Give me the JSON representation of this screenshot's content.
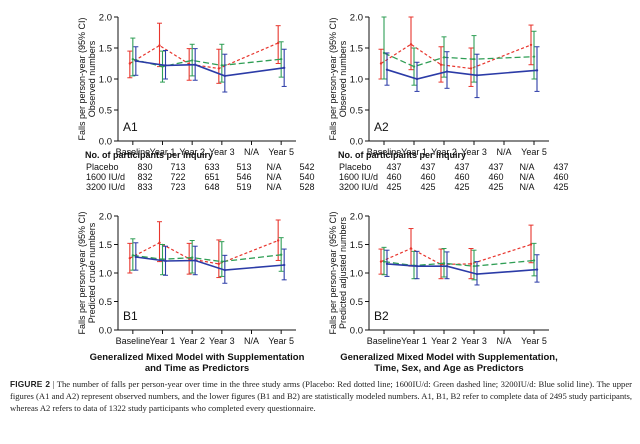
{
  "figure": {
    "caption_label": "FIGURE 2",
    "caption_sep": "|",
    "caption_text": "The number of falls per person-year over time in the three study arms (Placebo: Red dotted line; 1600IU/d: Green dashed line; 3200IU/d: Blue solid line). The upper figures (A1 and A2) represent observed numbers, and the lower figures (B1 and B2) are statistically modeled numbers. A1, B1, B2 refer to complete data of 2495 study participants, whereas A2 refers to data of 1322 study participants who completed every questionnaire."
  },
  "colors": {
    "placebo": "#e8352d",
    "iu1600": "#2f9e55",
    "iu3200": "#2b3ba7",
    "axis": "#111111"
  },
  "chart_data": [
    {
      "id": "A1",
      "type": "line",
      "panel_label": "A1",
      "ylabel_lines": [
        "Falls per person-year (95% CI)",
        "Observed numbers"
      ],
      "categories": [
        "Baseline",
        "Year 1",
        "Year 2",
        "Year 3",
        "N/A",
        "Year 5"
      ],
      "ylim": [
        0,
        2.0
      ],
      "yticks": [
        "0.0",
        "0.5",
        "1.0",
        "1.5",
        "2.0"
      ],
      "series": [
        {
          "key": "placebo",
          "style": "dotted",
          "values": [
            1.25,
            1.54,
            1.24,
            1.17,
            null,
            1.58
          ],
          "lower": [
            1.02,
            1.2,
            0.98,
            0.93,
            null,
            1.25
          ],
          "upper": [
            1.45,
            1.9,
            1.49,
            1.48,
            null,
            1.86
          ]
        },
        {
          "key": "iu1600",
          "style": "dashed",
          "values": [
            1.32,
            1.2,
            1.3,
            1.22,
            null,
            1.32
          ],
          "lower": [
            1.05,
            0.95,
            1.05,
            0.95,
            null,
            1.03
          ],
          "upper": [
            1.66,
            1.45,
            1.56,
            1.56,
            null,
            1.6
          ]
        },
        {
          "key": "iu3200",
          "style": "solid",
          "values": [
            1.29,
            1.22,
            1.23,
            1.05,
            null,
            1.18
          ],
          "lower": [
            1.06,
            1.0,
            0.98,
            0.79,
            null,
            0.88
          ],
          "upper": [
            1.52,
            1.46,
            1.49,
            1.4,
            null,
            1.48
          ]
        }
      ]
    },
    {
      "id": "A2",
      "type": "line",
      "panel_label": "A2",
      "ylabel_lines": [
        "Falls per person-year (95% CI)",
        "Observed numbers"
      ],
      "categories": [
        "Baseline",
        "Year 1",
        "Year 2",
        "Year 3",
        "N/A",
        "Year 5"
      ],
      "ylim": [
        0,
        2.0
      ],
      "yticks": [
        "0.0",
        "0.5",
        "1.0",
        "1.5",
        "2.0"
      ],
      "series": [
        {
          "key": "placebo",
          "style": "dotted",
          "values": [
            1.25,
            1.56,
            1.23,
            1.17,
            null,
            1.55
          ],
          "lower": [
            1.0,
            1.15,
            0.95,
            0.88,
            null,
            1.23
          ],
          "upper": [
            1.48,
            2.0,
            1.52,
            1.5,
            null,
            1.87
          ]
        },
        {
          "key": "iu1600",
          "style": "dashed",
          "values": [
            1.42,
            1.2,
            1.35,
            1.32,
            null,
            1.36
          ],
          "lower": [
            1.0,
            0.9,
            1.03,
            0.95,
            null,
            1.0
          ],
          "upper": [
            2.0,
            1.5,
            1.68,
            1.7,
            null,
            1.77
          ]
        },
        {
          "key": "iu3200",
          "style": "solid",
          "values": [
            1.15,
            1.0,
            1.12,
            1.06,
            null,
            1.14
          ],
          "lower": [
            0.9,
            0.8,
            0.85,
            0.7,
            null,
            0.8
          ],
          "upper": [
            1.42,
            1.27,
            1.44,
            1.4,
            null,
            1.52
          ]
        }
      ]
    },
    {
      "id": "B1",
      "type": "line",
      "panel_label": "B1",
      "ylabel_lines": [
        "Falls per person-year (95% CI)",
        "Predicted crude numbers"
      ],
      "categories": [
        "Baseline",
        "Year 1",
        "Year 2",
        "Year 3",
        "N/A",
        "Year 5"
      ],
      "xlabel_lines": [
        "Generalized Mixed Model with Supplementation",
        "and Time as Predictors"
      ],
      "ylim": [
        0,
        2.0
      ],
      "yticks": [
        "0.0",
        "0.5",
        "1.0",
        "1.5",
        "2.0"
      ],
      "series": [
        {
          "key": "placebo",
          "style": "dotted",
          "values": [
            1.26,
            1.53,
            1.25,
            1.16,
            null,
            1.57
          ],
          "lower": [
            1.0,
            1.2,
            0.98,
            0.92,
            null,
            1.22
          ],
          "upper": [
            1.52,
            1.9,
            1.52,
            1.58,
            null,
            1.93
          ]
        },
        {
          "key": "iu1600",
          "style": "dashed",
          "values": [
            1.31,
            1.24,
            1.27,
            1.2,
            null,
            1.32
          ],
          "lower": [
            1.05,
            0.97,
            1.0,
            0.94,
            null,
            1.03
          ],
          "upper": [
            1.6,
            1.5,
            1.57,
            1.55,
            null,
            1.62
          ]
        },
        {
          "key": "iu3200",
          "style": "solid",
          "values": [
            1.28,
            1.21,
            1.22,
            1.05,
            null,
            1.14
          ],
          "lower": [
            1.05,
            0.96,
            0.97,
            0.82,
            null,
            0.88
          ],
          "upper": [
            1.53,
            1.47,
            1.47,
            1.31,
            null,
            1.42
          ]
        }
      ]
    },
    {
      "id": "B2",
      "type": "line",
      "panel_label": "B2",
      "ylabel_lines": [
        "Falls per person-year (95% CI)",
        "Predicted adjusted numbers"
      ],
      "categories": [
        "Baseline",
        "Year 1",
        "Year 2",
        "Year 3",
        "N/A",
        "Year 5"
      ],
      "xlabel_lines": [
        "Generalized Mixed Model with Supplementation,",
        "Time, Sex, and Age as Predictors"
      ],
      "ylim": [
        0,
        2.0
      ],
      "yticks": [
        "0.0",
        "0.5",
        "1.0",
        "1.5",
        "2.0"
      ],
      "series": [
        {
          "key": "placebo",
          "style": "dotted",
          "values": [
            1.2,
            1.43,
            1.15,
            1.16,
            null,
            1.5
          ],
          "lower": [
            0.98,
            1.12,
            0.9,
            0.9,
            null,
            1.18
          ],
          "upper": [
            1.42,
            1.78,
            1.42,
            1.43,
            null,
            1.84
          ]
        },
        {
          "key": "iu1600",
          "style": "dashed",
          "values": [
            1.2,
            1.13,
            1.17,
            1.12,
            null,
            1.22
          ],
          "lower": [
            0.97,
            0.9,
            0.93,
            0.88,
            null,
            0.95
          ],
          "upper": [
            1.45,
            1.38,
            1.43,
            1.4,
            null,
            1.52
          ]
        },
        {
          "key": "iu3200",
          "style": "solid",
          "values": [
            1.16,
            1.12,
            1.12,
            0.98,
            null,
            1.06
          ],
          "lower": [
            0.94,
            0.9,
            0.9,
            0.79,
            null,
            0.84
          ],
          "upper": [
            1.4,
            1.38,
            1.37,
            1.2,
            null,
            1.32
          ]
        }
      ]
    }
  ],
  "tables": [
    {
      "title": "No. of participants per inquiry",
      "rows": [
        {
          "label": "Placebo",
          "values": [
            "830",
            "713",
            "633",
            "513",
            "N/A",
            "542"
          ]
        },
        {
          "label": "1600 IU/d",
          "values": [
            "832",
            "722",
            "651",
            "546",
            "N/A",
            "540"
          ]
        },
        {
          "label": "3200 IU/d",
          "values": [
            "833",
            "723",
            "648",
            "519",
            "N/A",
            "528"
          ]
        }
      ]
    },
    {
      "title": "No. of participants per inquiry",
      "rows": [
        {
          "label": "Placebo",
          "values": [
            "437",
            "437",
            "437",
            "437",
            "N/A",
            "437"
          ]
        },
        {
          "label": "1600 IU/d",
          "values": [
            "460",
            "460",
            "460",
            "460",
            "N/A",
            "460"
          ]
        },
        {
          "label": "3200 IU/d",
          "values": [
            "425",
            "425",
            "425",
            "425",
            "N/A",
            "425"
          ]
        }
      ]
    }
  ]
}
